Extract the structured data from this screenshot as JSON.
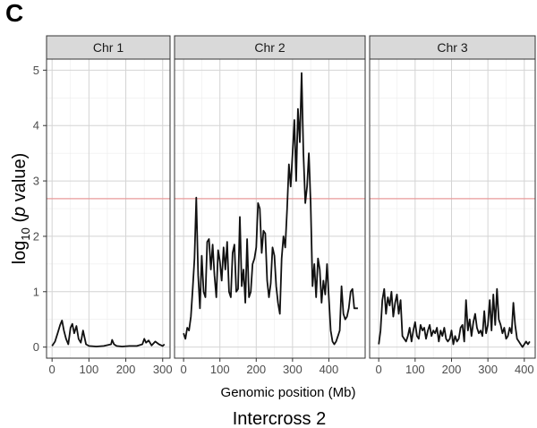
{
  "panel_letter": "C",
  "chart_data": {
    "type": "line",
    "title": "Intercross 2",
    "xlabel": "Genomic position (Mb)",
    "ylabel_parts": {
      "prefix": "log",
      "subscript": "10",
      "open": " (",
      "italic": "p",
      "rest": " value)"
    },
    "ylim": [
      -0.2,
      5.2
    ],
    "yticks": [
      0,
      1,
      2,
      3,
      4,
      5
    ],
    "threshold": {
      "value": 2.68,
      "color": "#e89a9a"
    },
    "line_color": "#111111",
    "grid": true,
    "facets": [
      {
        "name": "Chr 1",
        "xlim": [
          -15,
          320
        ],
        "xticks": [
          0,
          100,
          200,
          300
        ],
        "x": [
          0,
          8,
          15,
          22,
          27,
          32,
          38,
          44,
          50,
          55,
          60,
          66,
          72,
          78,
          84,
          92,
          100,
          120,
          140,
          160,
          163,
          168,
          175,
          190,
          210,
          230,
          245,
          250,
          255,
          262,
          270,
          280,
          290,
          300,
          305
        ],
        "y": [
          0.02,
          0.1,
          0.25,
          0.4,
          0.48,
          0.3,
          0.15,
          0.05,
          0.35,
          0.42,
          0.25,
          0.38,
          0.15,
          0.08,
          0.3,
          0.05,
          0.02,
          0.01,
          0.02,
          0.05,
          0.13,
          0.05,
          0.02,
          0.01,
          0.02,
          0.02,
          0.05,
          0.15,
          0.08,
          0.12,
          0.03,
          0.1,
          0.05,
          0.02,
          0.05
        ]
      },
      {
        "name": "Chr 2",
        "xlim": [
          -25,
          500
        ],
        "xticks": [
          0,
          100,
          200,
          300,
          400
        ],
        "x": [
          0,
          5,
          10,
          15,
          20,
          25,
          30,
          35,
          40,
          45,
          50,
          55,
          60,
          65,
          70,
          75,
          80,
          85,
          90,
          95,
          100,
          105,
          110,
          115,
          120,
          125,
          130,
          135,
          140,
          145,
          150,
          155,
          160,
          165,
          170,
          175,
          180,
          185,
          190,
          195,
          200,
          205,
          210,
          215,
          220,
          225,
          230,
          235,
          240,
          245,
          250,
          255,
          260,
          265,
          270,
          275,
          280,
          285,
          290,
          295,
          300,
          305,
          310,
          315,
          320,
          325,
          330,
          335,
          340,
          345,
          350,
          355,
          360,
          365,
          370,
          375,
          380,
          385,
          390,
          395,
          400,
          405,
          410,
          415,
          420,
          425,
          430,
          435,
          440,
          445,
          450,
          455,
          460,
          465,
          470,
          475,
          480
        ],
        "y": [
          0.25,
          0.15,
          0.35,
          0.3,
          0.55,
          1.05,
          1.6,
          2.7,
          1.3,
          0.7,
          1.65,
          1.0,
          0.9,
          1.9,
          1.95,
          1.4,
          1.85,
          1.3,
          0.9,
          1.75,
          1.55,
          1.2,
          1.8,
          1.4,
          1.9,
          1.0,
          0.9,
          1.7,
          1.85,
          1.0,
          1.05,
          2.35,
          1.1,
          1.4,
          0.8,
          1.95,
          0.9,
          1.0,
          1.5,
          1.6,
          1.8,
          2.6,
          2.5,
          1.7,
          2.1,
          2.05,
          1.2,
          0.9,
          1.15,
          1.8,
          1.65,
          1.1,
          0.8,
          0.6,
          1.6,
          2.0,
          1.8,
          2.5,
          3.3,
          2.9,
          3.5,
          4.1,
          3.0,
          4.3,
          3.7,
          4.95,
          3.5,
          2.6,
          2.9,
          3.5,
          2.6,
          1.1,
          1.5,
          0.9,
          1.6,
          1.4,
          0.8,
          1.2,
          0.95,
          1.5,
          0.9,
          0.3,
          0.1,
          0.05,
          0.1,
          0.2,
          0.3,
          1.1,
          0.6,
          0.5,
          0.55,
          0.7,
          1.0,
          1.05,
          0.7,
          0.7,
          0.7
        ]
      },
      {
        "name": "Chr 3",
        "xlim": [
          -25,
          430
        ],
        "xticks": [
          0,
          100,
          200,
          300,
          400
        ],
        "x": [
          0,
          5,
          10,
          15,
          20,
          25,
          30,
          35,
          40,
          45,
          50,
          55,
          60,
          65,
          70,
          75,
          80,
          85,
          90,
          95,
          100,
          105,
          110,
          115,
          120,
          125,
          130,
          135,
          140,
          145,
          150,
          155,
          160,
          165,
          170,
          175,
          180,
          185,
          190,
          195,
          200,
          205,
          210,
          215,
          220,
          225,
          230,
          235,
          240,
          245,
          250,
          255,
          260,
          265,
          270,
          275,
          280,
          285,
          290,
          295,
          300,
          305,
          310,
          315,
          320,
          325,
          330,
          335,
          340,
          345,
          350,
          355,
          360,
          365,
          370,
          375,
          380,
          385,
          390,
          395,
          400,
          405,
          410,
          415
        ],
        "y": [
          0.05,
          0.3,
          0.85,
          1.05,
          0.6,
          0.9,
          0.75,
          1.0,
          0.55,
          0.8,
          0.95,
          0.6,
          0.85,
          0.2,
          0.15,
          0.1,
          0.2,
          0.35,
          0.1,
          0.3,
          0.45,
          0.2,
          0.15,
          0.4,
          0.3,
          0.35,
          0.15,
          0.3,
          0.4,
          0.2,
          0.3,
          0.25,
          0.35,
          0.1,
          0.3,
          0.2,
          0.35,
          0.15,
          0.1,
          0.15,
          0.3,
          0.05,
          0.2,
          0.1,
          0.15,
          0.35,
          0.4,
          0.1,
          0.85,
          0.3,
          0.5,
          0.2,
          0.45,
          0.6,
          0.35,
          0.25,
          0.3,
          0.2,
          0.65,
          0.25,
          0.4,
          0.85,
          0.3,
          0.95,
          0.4,
          1.05,
          0.5,
          0.4,
          0.25,
          0.35,
          0.15,
          0.2,
          0.35,
          0.25,
          0.8,
          0.4,
          0.15,
          0.1,
          0.05,
          0.0,
          0.05,
          0.1,
          0.05,
          0.1
        ]
      }
    ]
  }
}
